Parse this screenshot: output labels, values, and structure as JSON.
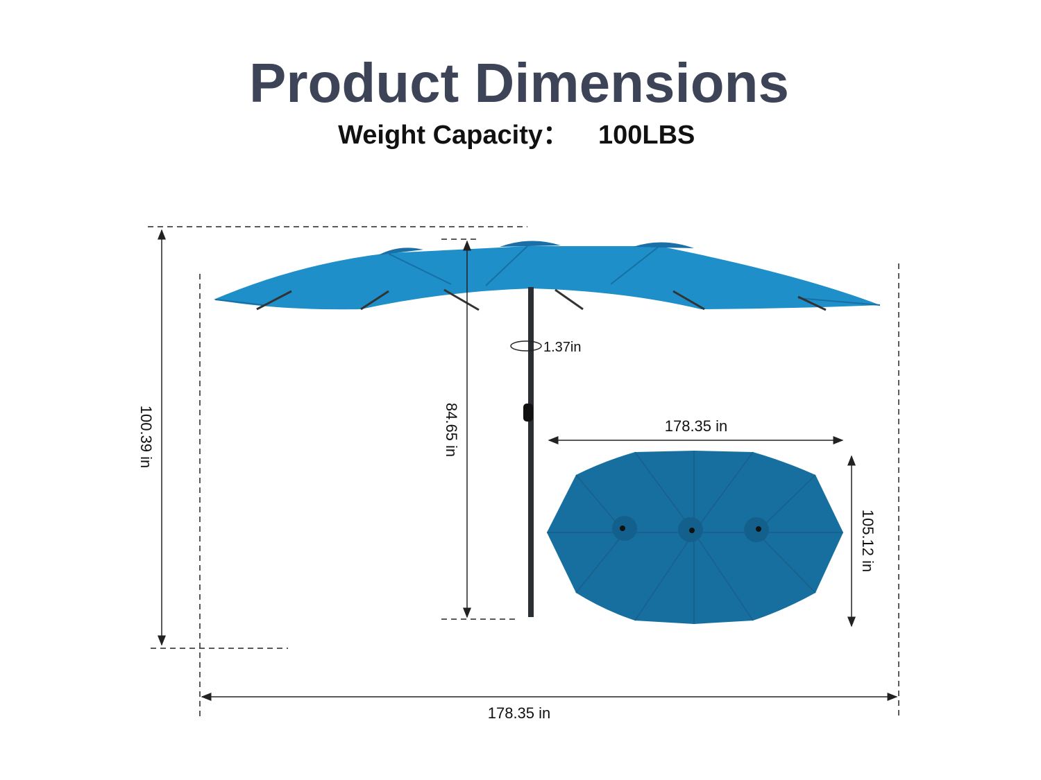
{
  "header": {
    "title": "Product Dimensions",
    "subtitle_label": "Weight Capacity：",
    "subtitle_value": "100LBS"
  },
  "side_view": {
    "pole_diameter": "1.37in",
    "pole_height": "84.65 in",
    "total_height": "100.39 in",
    "total_width": "178.35 in"
  },
  "top_view": {
    "width": "178.35 in",
    "depth": "105.12 in"
  }
}
